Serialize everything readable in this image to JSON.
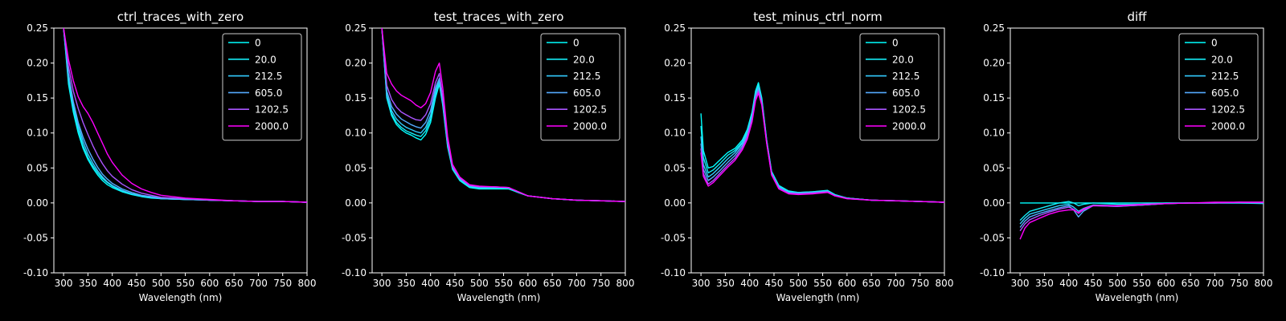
{
  "colors": {
    "background": "#000000",
    "foreground": "#ffffff",
    "series": [
      "#00ffff",
      "#14ebf5",
      "#33ccff",
      "#55aaff",
      "#aa55ff",
      "#ff00ff"
    ]
  },
  "chart_data": [
    {
      "type": "line",
      "title": "ctrl_traces_with_zero",
      "xlabel": "Wavelength (nm)",
      "ylabel": "",
      "xlim": [
        280,
        800
      ],
      "ylim": [
        -0.1,
        0.25
      ],
      "xticks": [
        300,
        350,
        400,
        450,
        500,
        550,
        600,
        650,
        700,
        750,
        800
      ],
      "yticks": [
        -0.1,
        -0.05,
        0.0,
        0.05,
        0.1,
        0.15,
        0.2,
        0.25
      ],
      "legend": "top-right",
      "grid": false,
      "x": [
        300,
        310,
        320,
        330,
        340,
        350,
        360,
        370,
        380,
        390,
        400,
        420,
        440,
        460,
        480,
        500,
        550,
        600,
        650,
        700,
        750,
        800
      ],
      "series": [
        {
          "name": "0",
          "values": [
            0.25,
            0.17,
            0.13,
            0.1,
            0.078,
            0.062,
            0.05,
            0.04,
            0.032,
            0.026,
            0.022,
            0.016,
            0.012,
            0.009,
            0.007,
            0.006,
            0.005,
            0.004,
            0.003,
            0.002,
            0.002,
            0.001
          ]
        },
        {
          "name": "20.0",
          "values": [
            0.25,
            0.175,
            0.135,
            0.105,
            0.082,
            0.065,
            0.053,
            0.043,
            0.035,
            0.029,
            0.024,
            0.017,
            0.013,
            0.01,
            0.008,
            0.006,
            0.005,
            0.004,
            0.003,
            0.002,
            0.002,
            0.001
          ]
        },
        {
          "name": "212.5",
          "values": [
            0.25,
            0.18,
            0.14,
            0.11,
            0.088,
            0.07,
            0.057,
            0.046,
            0.037,
            0.03,
            0.025,
            0.018,
            0.013,
            0.01,
            0.008,
            0.006,
            0.005,
            0.004,
            0.003,
            0.002,
            0.002,
            0.001
          ]
        },
        {
          "name": "605.0",
          "values": [
            0.25,
            0.185,
            0.145,
            0.115,
            0.094,
            0.077,
            0.063,
            0.051,
            0.041,
            0.034,
            0.028,
            0.02,
            0.015,
            0.011,
            0.009,
            0.007,
            0.005,
            0.004,
            0.003,
            0.002,
            0.002,
            0.001
          ]
        },
        {
          "name": "1202.5",
          "values": [
            0.25,
            0.195,
            0.16,
            0.135,
            0.115,
            0.098,
            0.082,
            0.068,
            0.056,
            0.046,
            0.038,
            0.027,
            0.019,
            0.014,
            0.011,
            0.008,
            0.006,
            0.004,
            0.003,
            0.002,
            0.002,
            0.001
          ]
        },
        {
          "name": "2000.0",
          "values": [
            0.25,
            0.205,
            0.175,
            0.152,
            0.138,
            0.128,
            0.115,
            0.1,
            0.085,
            0.07,
            0.058,
            0.04,
            0.028,
            0.02,
            0.015,
            0.011,
            0.007,
            0.005,
            0.003,
            0.002,
            0.002,
            0.001
          ]
        }
      ]
    },
    {
      "type": "line",
      "title": "test_traces_with_zero",
      "xlabel": "Wavelength (nm)",
      "ylabel": "",
      "xlim": [
        280,
        800
      ],
      "ylim": [
        -0.1,
        0.25
      ],
      "xticks": [
        300,
        350,
        400,
        450,
        500,
        550,
        600,
        650,
        700,
        750,
        800
      ],
      "yticks": [
        -0.1,
        -0.05,
        0.0,
        0.05,
        0.1,
        0.15,
        0.2,
        0.25
      ],
      "legend": "top-right",
      "grid": false,
      "x": [
        300,
        310,
        320,
        330,
        340,
        350,
        360,
        370,
        380,
        390,
        400,
        410,
        418,
        425,
        435,
        445,
        460,
        480,
        500,
        530,
        560,
        580,
        600,
        650,
        700,
        750,
        800
      ],
      "series": [
        {
          "name": "0",
          "values": [
            0.25,
            0.15,
            0.125,
            0.112,
            0.105,
            0.1,
            0.097,
            0.093,
            0.09,
            0.098,
            0.115,
            0.15,
            0.17,
            0.14,
            0.08,
            0.048,
            0.032,
            0.022,
            0.02,
            0.02,
            0.02,
            0.015,
            0.01,
            0.006,
            0.004,
            0.003,
            0.002
          ]
        },
        {
          "name": "20.0",
          "values": [
            0.25,
            0.152,
            0.128,
            0.115,
            0.108,
            0.103,
            0.1,
            0.097,
            0.095,
            0.103,
            0.12,
            0.155,
            0.172,
            0.142,
            0.082,
            0.049,
            0.033,
            0.023,
            0.021,
            0.021,
            0.021,
            0.015,
            0.01,
            0.006,
            0.004,
            0.003,
            0.002
          ]
        },
        {
          "name": "212.5",
          "values": [
            0.25,
            0.155,
            0.132,
            0.12,
            0.113,
            0.108,
            0.105,
            0.102,
            0.1,
            0.108,
            0.125,
            0.16,
            0.175,
            0.145,
            0.084,
            0.05,
            0.034,
            0.024,
            0.022,
            0.022,
            0.022,
            0.016,
            0.01,
            0.006,
            0.004,
            0.003,
            0.002
          ]
        },
        {
          "name": "605.0",
          "values": [
            0.25,
            0.16,
            0.138,
            0.127,
            0.12,
            0.116,
            0.112,
            0.109,
            0.107,
            0.115,
            0.132,
            0.165,
            0.178,
            0.148,
            0.086,
            0.051,
            0.035,
            0.025,
            0.023,
            0.023,
            0.022,
            0.016,
            0.01,
            0.006,
            0.004,
            0.003,
            0.002
          ]
        },
        {
          "name": "1202.5",
          "values": [
            0.25,
            0.168,
            0.148,
            0.137,
            0.13,
            0.126,
            0.122,
            0.119,
            0.118,
            0.126,
            0.142,
            0.172,
            0.185,
            0.152,
            0.088,
            0.052,
            0.036,
            0.025,
            0.023,
            0.023,
            0.022,
            0.016,
            0.01,
            0.006,
            0.004,
            0.003,
            0.002
          ]
        },
        {
          "name": "2000.0",
          "values": [
            0.25,
            0.185,
            0.17,
            0.16,
            0.154,
            0.15,
            0.146,
            0.14,
            0.136,
            0.142,
            0.158,
            0.188,
            0.2,
            0.165,
            0.095,
            0.055,
            0.037,
            0.026,
            0.024,
            0.023,
            0.022,
            0.016,
            0.01,
            0.006,
            0.004,
            0.003,
            0.002
          ]
        }
      ]
    },
    {
      "type": "line",
      "title": "test_minus_ctrl_norm",
      "xlabel": "Wavelength (nm)",
      "ylabel": "",
      "xlim": [
        280,
        800
      ],
      "ylim": [
        -0.1,
        0.25
      ],
      "xticks": [
        300,
        350,
        400,
        450,
        500,
        550,
        600,
        650,
        700,
        750,
        800
      ],
      "yticks": [
        -0.1,
        -0.05,
        0.0,
        0.05,
        0.1,
        0.15,
        0.2,
        0.25
      ],
      "legend": "top-right",
      "grid": false,
      "x": [
        300,
        305,
        315,
        325,
        340,
        355,
        370,
        385,
        395,
        405,
        412,
        418,
        425,
        435,
        445,
        460,
        480,
        500,
        530,
        560,
        575,
        600,
        650,
        700,
        750,
        800
      ],
      "series": [
        {
          "name": "0",
          "values": [
            0.128,
            0.075,
            0.05,
            0.052,
            0.062,
            0.072,
            0.078,
            0.09,
            0.105,
            0.13,
            0.16,
            0.172,
            0.15,
            0.09,
            0.045,
            0.025,
            0.017,
            0.015,
            0.016,
            0.018,
            0.012,
            0.007,
            0.004,
            0.003,
            0.002,
            0.001
          ]
        },
        {
          "name": "20.0",
          "values": [
            0.11,
            0.065,
            0.043,
            0.047,
            0.057,
            0.068,
            0.075,
            0.087,
            0.102,
            0.127,
            0.157,
            0.169,
            0.148,
            0.089,
            0.044,
            0.024,
            0.016,
            0.015,
            0.016,
            0.017,
            0.011,
            0.007,
            0.004,
            0.003,
            0.002,
            0.001
          ]
        },
        {
          "name": "212.5",
          "values": [
            0.095,
            0.055,
            0.037,
            0.042,
            0.052,
            0.063,
            0.072,
            0.085,
            0.1,
            0.125,
            0.155,
            0.166,
            0.146,
            0.088,
            0.043,
            0.023,
            0.015,
            0.014,
            0.015,
            0.017,
            0.011,
            0.007,
            0.004,
            0.003,
            0.002,
            0.001
          ]
        },
        {
          "name": "605.0",
          "values": [
            0.085,
            0.048,
            0.032,
            0.037,
            0.047,
            0.058,
            0.068,
            0.082,
            0.097,
            0.122,
            0.152,
            0.163,
            0.144,
            0.087,
            0.042,
            0.022,
            0.015,
            0.014,
            0.015,
            0.016,
            0.011,
            0.007,
            0.004,
            0.003,
            0.002,
            0.001
          ]
        },
        {
          "name": "1202.5",
          "values": [
            0.078,
            0.042,
            0.027,
            0.032,
            0.043,
            0.054,
            0.064,
            0.079,
            0.094,
            0.119,
            0.149,
            0.16,
            0.142,
            0.086,
            0.041,
            0.021,
            0.014,
            0.013,
            0.014,
            0.016,
            0.01,
            0.006,
            0.004,
            0.003,
            0.002,
            0.001
          ]
        },
        {
          "name": "2000.0",
          "values": [
            0.072,
            0.038,
            0.024,
            0.029,
            0.04,
            0.051,
            0.061,
            0.076,
            0.091,
            0.116,
            0.146,
            0.157,
            0.14,
            0.085,
            0.04,
            0.02,
            0.013,
            0.012,
            0.013,
            0.015,
            0.01,
            0.006,
            0.004,
            0.003,
            0.002,
            0.001
          ]
        }
      ]
    },
    {
      "type": "line",
      "title": "diff",
      "xlabel": "Wavelength (nm)",
      "ylabel": "",
      "xlim": [
        280,
        800
      ],
      "ylim": [
        -0.1,
        0.25
      ],
      "xticks": [
        300,
        350,
        400,
        450,
        500,
        550,
        600,
        650,
        700,
        750,
        800
      ],
      "yticks": [
        -0.1,
        -0.05,
        0.0,
        0.05,
        0.1,
        0.15,
        0.2,
        0.25
      ],
      "legend": "top-right",
      "grid": false,
      "x": [
        300,
        310,
        320,
        340,
        360,
        380,
        400,
        410,
        420,
        430,
        450,
        500,
        550,
        600,
        650,
        700,
        750,
        800
      ],
      "series": [
        {
          "name": "0",
          "values": [
            0,
            0,
            0,
            0,
            0,
            0,
            0,
            0,
            0,
            0,
            0,
            0,
            0,
            0,
            0,
            0,
            0,
            0
          ]
        },
        {
          "name": "20.0",
          "values": [
            -0.025,
            -0.018,
            -0.012,
            -0.008,
            -0.004,
            0.0,
            0.002,
            0.0,
            -0.004,
            -0.002,
            0.0,
            -0.002,
            -0.002,
            0.0,
            0.0,
            0.0,
            0.0,
            -0.001
          ]
        },
        {
          "name": "212.5",
          "values": [
            -0.03,
            -0.022,
            -0.016,
            -0.012,
            -0.008,
            -0.004,
            -0.002,
            -0.006,
            -0.012,
            -0.008,
            -0.003,
            -0.004,
            -0.003,
            -0.001,
            0.0,
            0.0,
            0.0,
            0.0
          ]
        },
        {
          "name": "605.0",
          "values": [
            -0.035,
            -0.026,
            -0.02,
            -0.015,
            -0.011,
            -0.007,
            -0.004,
            -0.01,
            -0.02,
            -0.012,
            -0.004,
            -0.005,
            -0.003,
            -0.001,
            0.0,
            0.0,
            0.001,
            0.0
          ]
        },
        {
          "name": "1202.5",
          "values": [
            -0.04,
            -0.03,
            -0.024,
            -0.018,
            -0.013,
            -0.009,
            -0.006,
            -0.009,
            -0.015,
            -0.01,
            -0.004,
            -0.005,
            -0.003,
            -0.001,
            0.0,
            0.0,
            0.001,
            0.001
          ]
        },
        {
          "name": "2000.0",
          "values": [
            -0.052,
            -0.036,
            -0.028,
            -0.022,
            -0.016,
            -0.012,
            -0.01,
            -0.01,
            -0.014,
            -0.009,
            -0.004,
            -0.004,
            -0.002,
            -0.001,
            0.0,
            0.001,
            0.001,
            0.001
          ]
        }
      ]
    }
  ]
}
